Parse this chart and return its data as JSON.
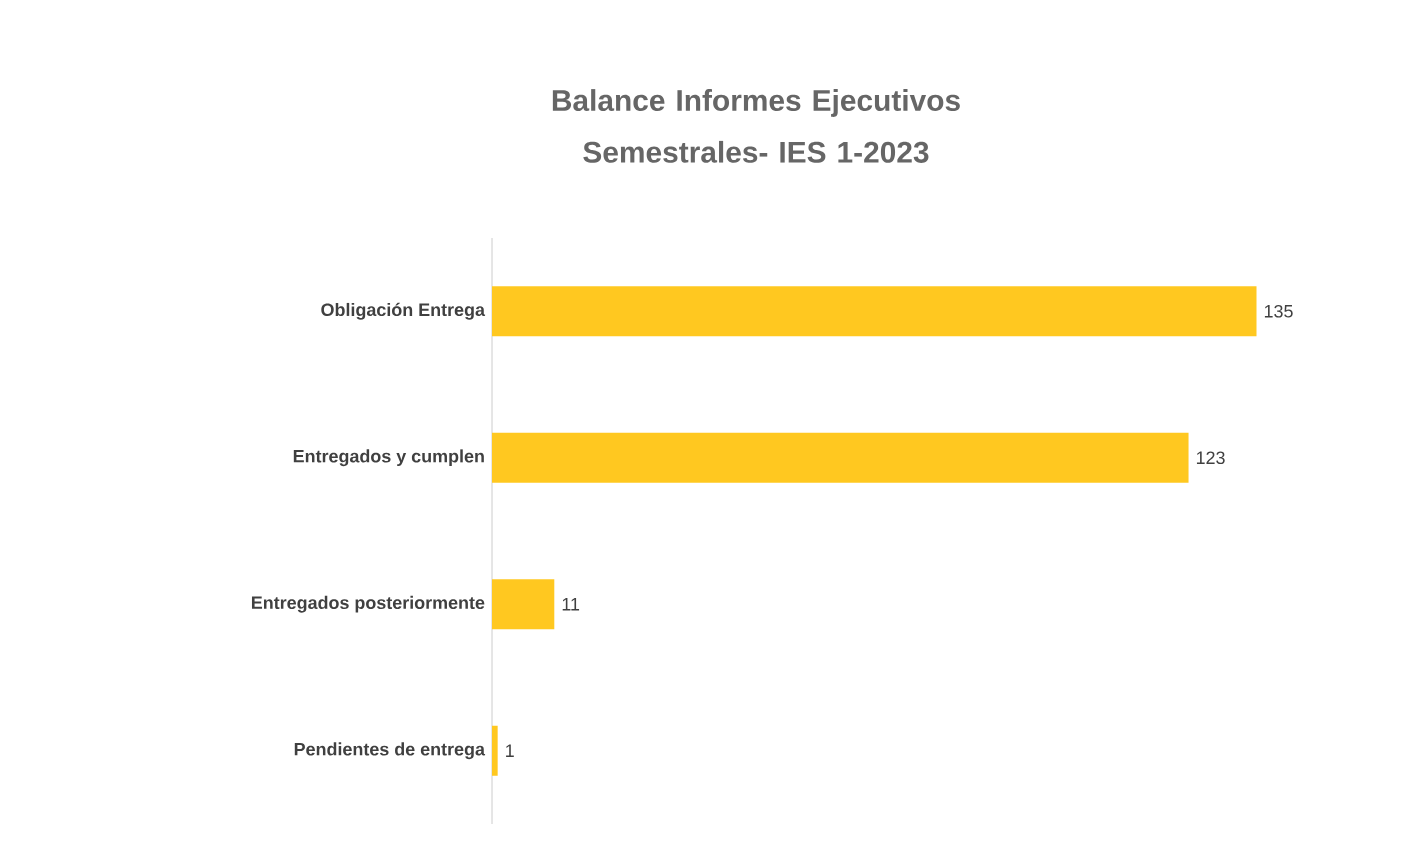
{
  "chart_data": {
    "type": "bar",
    "orientation": "horizontal",
    "title": "Balance Informes Ejecutivos Semestrales- IES 1-2023",
    "categories": [
      "Obligación Entrega",
      "Entregados y cumplen",
      "Entregados posteriormente",
      "Pendientes de entrega"
    ],
    "values": [
      135,
      123,
      11,
      1
    ],
    "color": "#ffc820",
    "data_labels": true
  }
}
